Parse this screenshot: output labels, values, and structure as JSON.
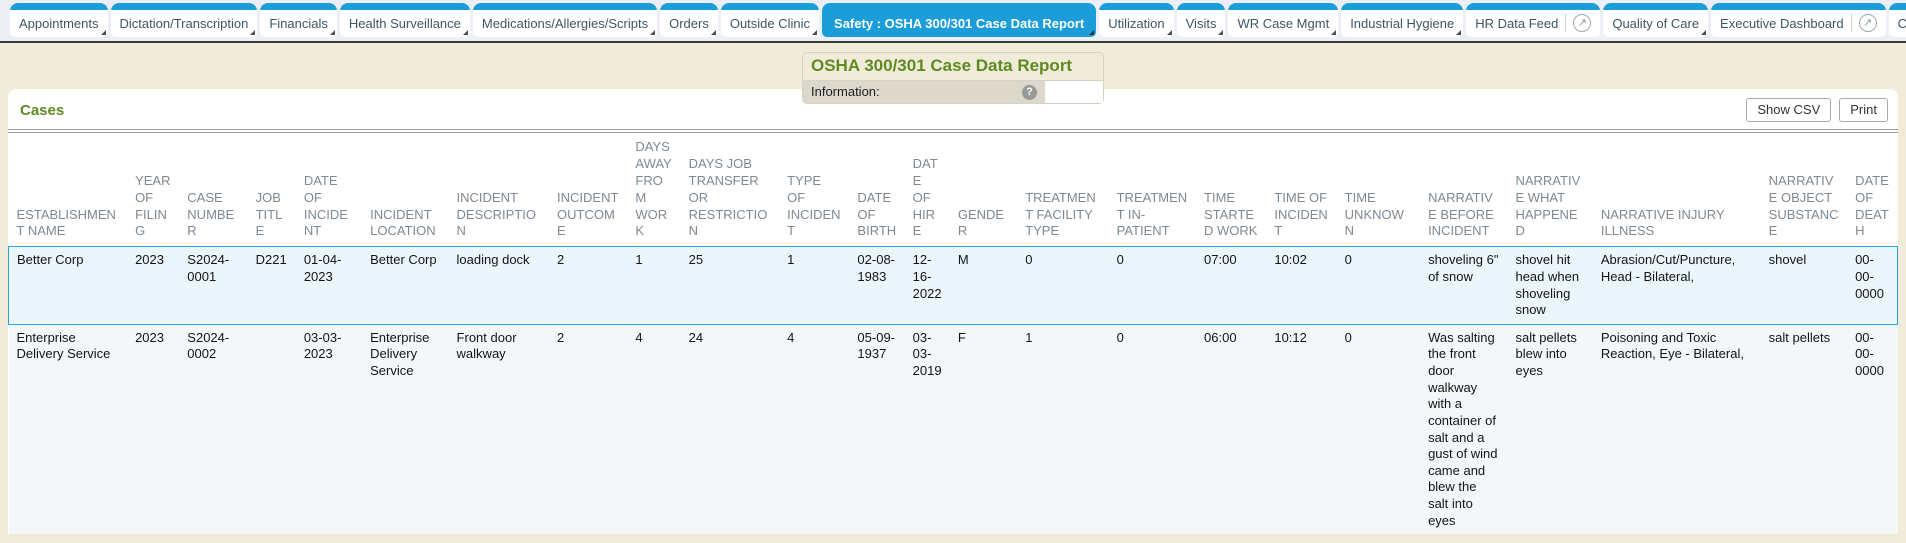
{
  "colors": {
    "tab_blue": "#1a9dd9",
    "title_green": "#5e8b21",
    "page_bg": "#f1ebd9",
    "selected_row_bg": "#eaf5fc",
    "selected_row_border": "#2aa3da",
    "alt_row_bg": "#f4f7f9"
  },
  "tab_bar": {
    "tabs": [
      {
        "label": "Appointments",
        "active": false,
        "menu": true,
        "external": false
      },
      {
        "label": "Dictation/Transcription",
        "active": false,
        "menu": true,
        "external": false
      },
      {
        "label": "Financials",
        "active": false,
        "menu": true,
        "external": false
      },
      {
        "label": "Health Surveillance",
        "active": false,
        "menu": true,
        "external": false
      },
      {
        "label": "Medications/Allergies/Scripts",
        "active": false,
        "menu": true,
        "external": false
      },
      {
        "label": "Orders",
        "active": false,
        "menu": true,
        "external": false
      },
      {
        "label": "Outside Clinic",
        "active": false,
        "menu": true,
        "external": false
      },
      {
        "label": "Safety : OSHA 300/301 Case Data Report",
        "active": true,
        "menu": true,
        "external": false
      },
      {
        "label": "Utilization",
        "active": false,
        "menu": true,
        "external": false
      },
      {
        "label": "Visits",
        "active": false,
        "menu": true,
        "external": false
      },
      {
        "label": "WR Case Mgmt",
        "active": false,
        "menu": true,
        "external": false
      },
      {
        "label": "Industrial Hygiene",
        "active": false,
        "menu": true,
        "external": false
      },
      {
        "label": "HR Data Feed",
        "active": false,
        "menu": false,
        "external": true
      },
      {
        "label": "Quality of Care",
        "active": false,
        "menu": true,
        "external": false
      },
      {
        "label": "Executive Dashboard",
        "active": false,
        "menu": false,
        "external": true
      },
      {
        "label": "C",
        "active": false,
        "menu": false,
        "external": false
      }
    ]
  },
  "report_header": {
    "title": "OSHA 300/301 Case Data Report",
    "information_label": "Information:",
    "help_icon": "?"
  },
  "cases_panel": {
    "title": "Cases",
    "buttons": {
      "show_csv": "Show CSV",
      "print": "Print"
    },
    "selected_row_index": 0,
    "table": {
      "columns": [
        "ESTABLISHMENT NAME",
        "YEAR OF FILING",
        "CASE NUMBER",
        "JOB TITLE",
        "DATE OF INCIDENT",
        "INCIDENT LOCATION",
        "INCIDENT DESCRIPTION",
        "INCIDENT OUTCOME",
        "DAYS AWAY FROM WORK",
        "DAYS JOB TRANSFER OR RESTRICTION",
        "TYPE OF INCIDENT",
        "DATE OF BIRTH",
        "DATE OF HIRE",
        "GENDER",
        "TREATMENT FACILITY TYPE",
        "TREATMENT IN-PATIENT",
        "TIME STARTED WORK",
        "TIME OF INCIDENT",
        "TIME UNKNOWN",
        "NARRATIVE BEFORE INCIDENT",
        "NARRATIVE WHAT HAPPENED",
        "NARRATIVE INJURY ILLNESS",
        "NARRATIVE OBJECT SUBSTANCE",
        "DATE OF DEATH"
      ],
      "rows": [
        [
          "Better Corp",
          "2023",
          "S2024-0001",
          "D221",
          "01-04-2023",
          "Better Corp",
          "loading dock",
          "2",
          "1",
          "25",
          "1",
          "02-08-1983",
          "12-16-2022",
          "M",
          "0",
          "0",
          "07:00",
          "10:02",
          "0",
          "shoveling 6\" of snow",
          "shovel hit head when shoveling snow",
          "Abrasion/Cut/Puncture, Head - Bilateral,",
          "shovel",
          "00-00-0000"
        ],
        [
          "Enterprise Delivery Service",
          "2023",
          "S2024-0002",
          "",
          "03-03-2023",
          "Enterprise Delivery Service",
          "Front door walkway",
          "2",
          "4",
          "24",
          "4",
          "05-09-1937",
          "03-03-2019",
          "F",
          "1",
          "0",
          "06:00",
          "10:12",
          "0",
          "Was salting the front door walkway with a container of salt and a gust of wind came and blew the salt into eyes",
          "salt pellets blew into eyes",
          "Poisoning and Toxic Reaction, Eye - Bilateral,",
          "salt pellets",
          "00-00-0000"
        ]
      ]
    }
  }
}
